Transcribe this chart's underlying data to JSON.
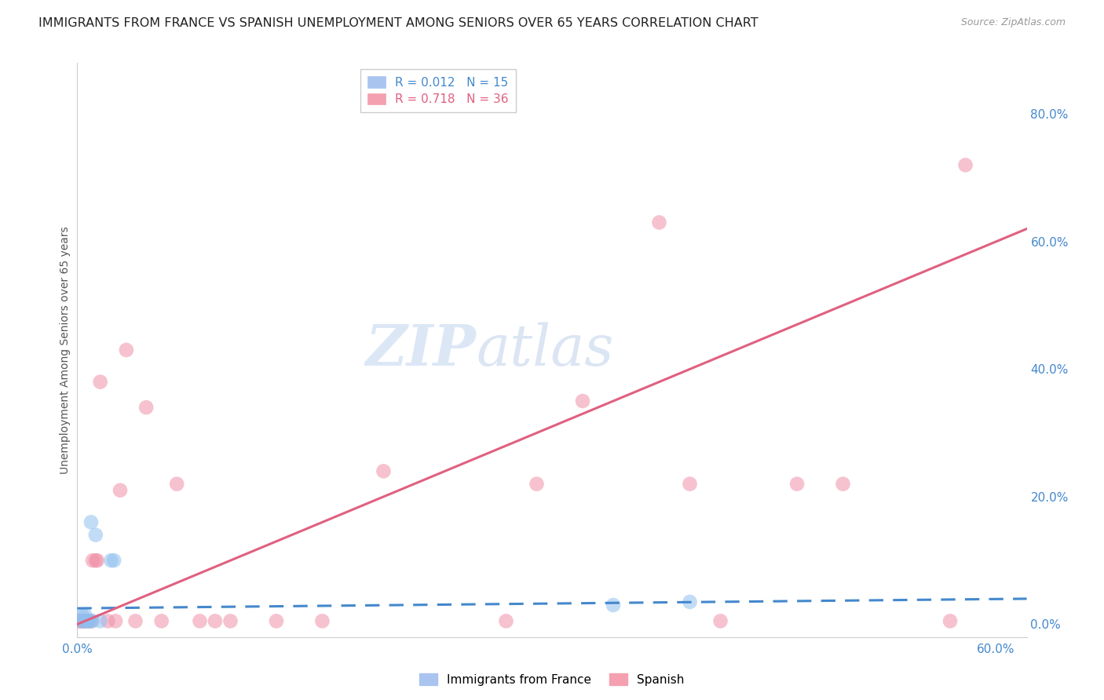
{
  "title": "IMMIGRANTS FROM FRANCE VS SPANISH UNEMPLOYMENT AMONG SENIORS OVER 65 YEARS CORRELATION CHART",
  "source": "Source: ZipAtlas.com",
  "ylabel": "Unemployment Among Seniors over 65 years",
  "xlim": [
    0.0,
    0.62
  ],
  "ylim": [
    -0.02,
    0.88
  ],
  "yticks_right": [
    0.0,
    0.2,
    0.4,
    0.6,
    0.8
  ],
  "ytick_right_labels": [
    "0.0%",
    "20.0%",
    "40.0%",
    "60.0%",
    "80.0%"
  ],
  "background_color": "#ffffff",
  "grid_color": "#d0d0d0",
  "watermark_zip": "ZIP",
  "watermark_atlas": "atlas",
  "blue_scatter_x": [
    0.003,
    0.003,
    0.004,
    0.005,
    0.006,
    0.007,
    0.008,
    0.009,
    0.01,
    0.012,
    0.015,
    0.022,
    0.024,
    0.35,
    0.4
  ],
  "blue_scatter_y": [
    0.005,
    0.015,
    0.005,
    0.015,
    0.005,
    0.005,
    0.005,
    0.16,
    0.005,
    0.14,
    0.005,
    0.1,
    0.1,
    0.03,
    0.035
  ],
  "pink_scatter_x": [
    0.001,
    0.002,
    0.003,
    0.004,
    0.005,
    0.006,
    0.008,
    0.009,
    0.01,
    0.012,
    0.013,
    0.015,
    0.02,
    0.025,
    0.028,
    0.032,
    0.038,
    0.045,
    0.055,
    0.065,
    0.08,
    0.09,
    0.1,
    0.13,
    0.16,
    0.2,
    0.28,
    0.3,
    0.33,
    0.38,
    0.4,
    0.42,
    0.47,
    0.5,
    0.57,
    0.58
  ],
  "pink_scatter_y": [
    0.005,
    0.005,
    0.005,
    0.005,
    0.005,
    0.005,
    0.005,
    0.005,
    0.1,
    0.1,
    0.1,
    0.38,
    0.005,
    0.005,
    0.21,
    0.43,
    0.005,
    0.34,
    0.005,
    0.22,
    0.005,
    0.005,
    0.005,
    0.005,
    0.005,
    0.24,
    0.005,
    0.22,
    0.35,
    0.63,
    0.22,
    0.005,
    0.22,
    0.22,
    0.005,
    0.72
  ],
  "blue_line_x": [
    0.0,
    0.62
  ],
  "blue_line_y": [
    0.025,
    0.04
  ],
  "pink_line_x": [
    0.0,
    0.62
  ],
  "pink_line_y": [
    0.0,
    0.62
  ],
  "blue_color": "#90c0f0",
  "pink_color": "#f090a8",
  "blue_line_color": "#4488cc",
  "pink_line_color": "#e06080",
  "title_fontsize": 11.5,
  "source_fontsize": 9,
  "legend_fontsize": 11
}
